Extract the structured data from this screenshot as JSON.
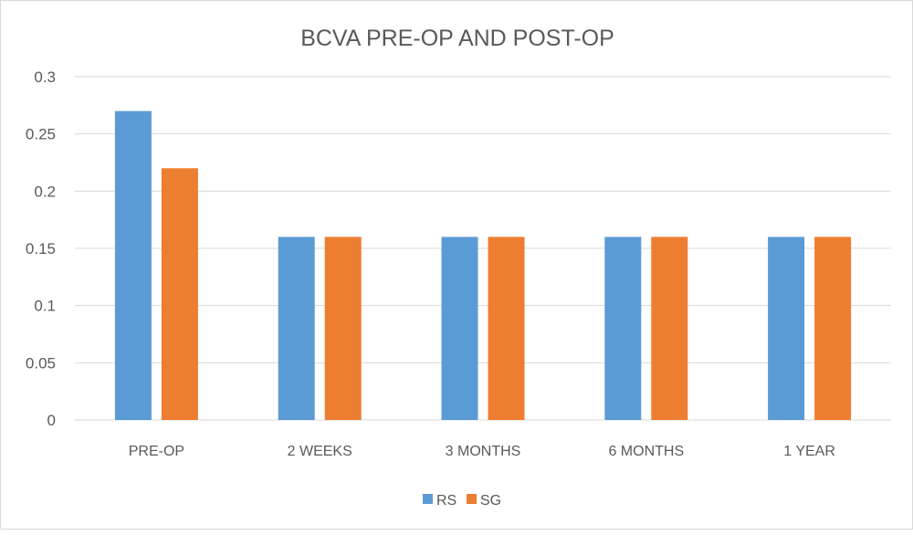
{
  "chart_data": {
    "type": "bar",
    "title": "BCVA PRE-OP AND POST-OP",
    "xlabel": "",
    "ylabel": "",
    "categories": [
      "PRE-OP",
      "2 WEEKS",
      "3 MONTHS",
      "6 MONTHS",
      "1 YEAR"
    ],
    "series": [
      {
        "name": "RS",
        "values": [
          0.27,
          0.16,
          0.16,
          0.16,
          0.16
        ],
        "color": "#5b9bd5"
      },
      {
        "name": "SG",
        "values": [
          0.22,
          0.16,
          0.16,
          0.16,
          0.16
        ],
        "color": "#ed7d31"
      }
    ],
    "ylim": [
      0,
      0.3
    ],
    "yticks": [
      "0",
      "0.05",
      "0.1",
      "0.15",
      "0.2",
      "0.25",
      "0.3"
    ],
    "grid": true,
    "legend_position": "bottom"
  }
}
